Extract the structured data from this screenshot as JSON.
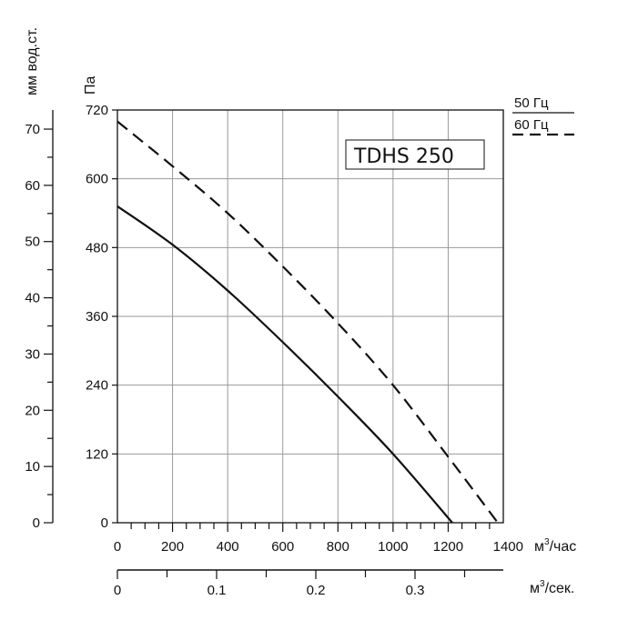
{
  "chart_data": {
    "type": "line",
    "title": "TDHS 250",
    "x_axis": {
      "label": "м³/час",
      "range": [
        0,
        1400
      ],
      "ticks": [
        "0",
        "200",
        "400",
        "600",
        "800",
        "1000",
        "1200",
        "1400"
      ]
    },
    "x2_axis": {
      "label": "м³/сек.",
      "range": [
        0,
        0.389
      ],
      "ticks": [
        "0",
        "0.1",
        "0.2",
        "0.3"
      ]
    },
    "y_axis": {
      "label": "Па",
      "range": [
        0,
        720
      ],
      "ticks": [
        "0",
        "120",
        "240",
        "360",
        "480",
        "600",
        "720"
      ]
    },
    "y2_axis": {
      "label": "мм вод.ст.",
      "range": [
        0,
        73.4
      ],
      "ticks": [
        "0",
        "10",
        "20",
        "30",
        "40",
        "50",
        "60",
        "70"
      ]
    },
    "grid": true,
    "legend_position": "top-right",
    "series": [
      {
        "name": "50 Гц",
        "style": "solid",
        "x": [
          0,
          200,
          400,
          600,
          800,
          1000,
          1215
        ],
        "y": [
          552,
          485,
          405,
          315,
          220,
          120,
          0
        ]
      },
      {
        "name": "60 Гц",
        "style": "dashed",
        "x": [
          0,
          200,
          400,
          600,
          800,
          1000,
          1200,
          1380
        ],
        "y": [
          700,
          622,
          540,
          447,
          348,
          240,
          115,
          0
        ]
      }
    ]
  }
}
